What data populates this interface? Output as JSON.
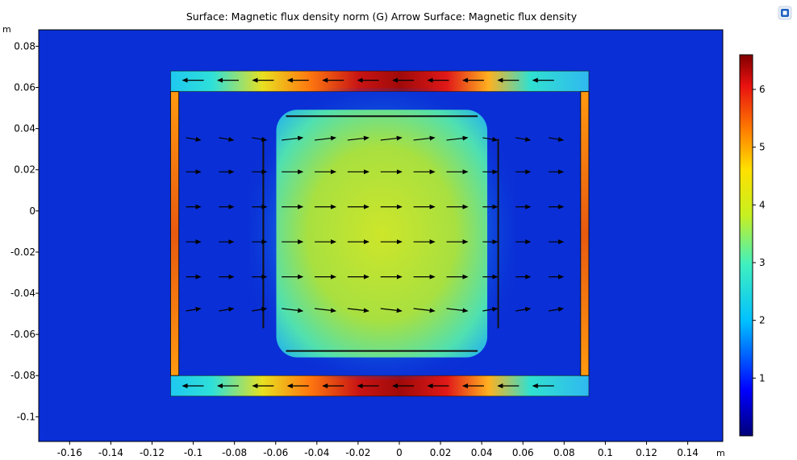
{
  "title": "Surface: Magnetic flux density norm (G)  Arrow Surface: Magnetic flux density",
  "units": {
    "x": "m",
    "y": "m"
  },
  "logo_icon": "comsol-logo-icon",
  "colors": {
    "background": "#ffffff",
    "field_background": "#0a2fd6",
    "arrow": "#000000",
    "yoke_edge": "#111111"
  },
  "chart_data": {
    "type": "heatmap",
    "title": "Surface: Magnetic flux density norm (G)  Arrow Surface: Magnetic flux density",
    "colormap": "rainbow",
    "xlim": [
      -0.175,
      0.157
    ],
    "ylim": [
      -0.112,
      0.088
    ],
    "x_ticks": [
      "-0.16",
      "-0.14",
      "-0.12",
      "-0.1",
      "-0.08",
      "-0.06",
      "-0.04",
      "-0.02",
      "0",
      "0.02",
      "0.04",
      "0.06",
      "0.08",
      "0.1",
      "0.12",
      "0.14"
    ],
    "y_ticks": [
      "0.08",
      "0.06",
      "0.04",
      "0.02",
      "0",
      "-0.02",
      "-0.04",
      "-0.06",
      "-0.08",
      "-0.1"
    ],
    "colorbar": {
      "min": 0,
      "max": 6.6,
      "ticks": [
        "6",
        "5",
        "4",
        "3",
        "2",
        "1"
      ]
    },
    "field_regions": [
      {
        "name": "top-yoke",
        "x": [
          -0.111,
          0.092
        ],
        "y": [
          0.058,
          0.068
        ]
      },
      {
        "name": "bottom-yoke",
        "x": [
          -0.111,
          0.092
        ],
        "y": [
          -0.09,
          -0.08
        ]
      },
      {
        "name": "left-yoke",
        "x": [
          -0.111,
          -0.107
        ],
        "y": [
          -0.08,
          0.058
        ]
      },
      {
        "name": "right-yoke",
        "x": [
          0.088,
          0.092
        ],
        "y": [
          -0.08,
          0.058
        ]
      },
      {
        "name": "inner-gap",
        "x": [
          -0.055,
          0.038
        ],
        "y": [
          -0.068,
          0.046
        ]
      }
    ],
    "plates": [
      {
        "name": "top-plate",
        "x": [
          -0.055,
          0.038
        ],
        "y": [
          0.046,
          0.046
        ]
      },
      {
        "name": "bottom-plate",
        "x": [
          -0.055,
          0.038
        ],
        "y": [
          -0.068,
          -0.068
        ]
      },
      {
        "name": "left-plate",
        "x": [
          -0.066,
          -0.066
        ],
        "y": [
          -0.057,
          0.035
        ]
      },
      {
        "name": "right-plate",
        "x": [
          0.048,
          0.048
        ],
        "y": [
          -0.057,
          0.035
        ]
      }
    ],
    "arrow_rows_y": [
      0.035,
      0.019,
      0.002,
      -0.015,
      -0.032,
      -0.048
    ],
    "arrow_cols_x": [
      -0.1,
      -0.084,
      -0.068,
      -0.052,
      -0.036,
      -0.02,
      -0.004,
      0.012,
      0.028,
      0.044,
      0.06,
      0.076
    ]
  }
}
